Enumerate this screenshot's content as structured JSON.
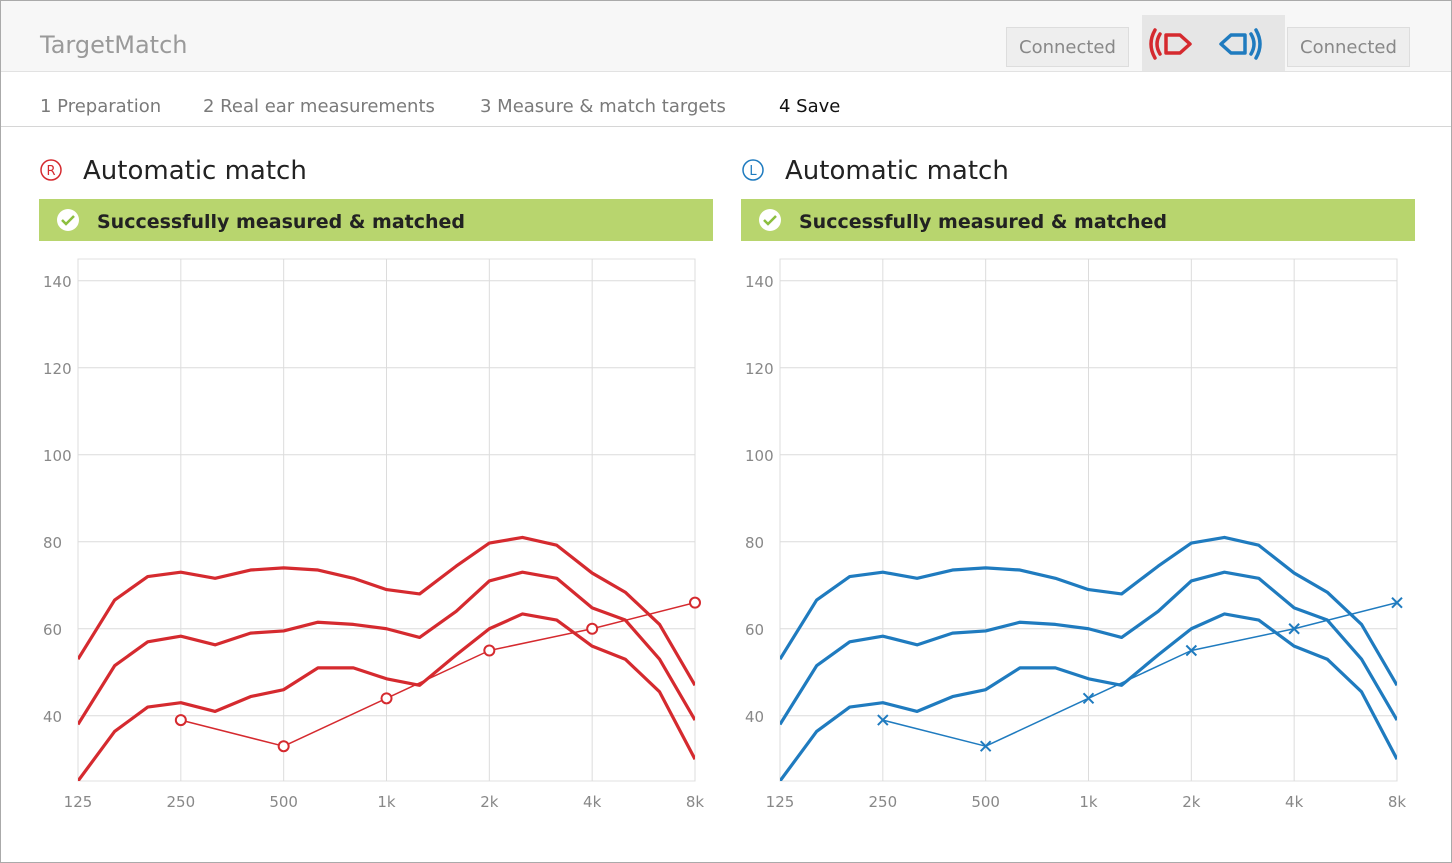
{
  "header": {
    "title": "TargetMatch",
    "status_left": "Connected",
    "status_right": "Connected"
  },
  "steps": [
    "1 Preparation",
    "2 Real ear measurements",
    "3 Measure & match targets",
    "4 Save"
  ],
  "current_step": 3,
  "chart_data": [
    {
      "type": "line",
      "side": "R",
      "title": "Automatic match",
      "status": "Successfully measured & matched",
      "color": "#d52a2f",
      "marker": "circle",
      "x": [
        125,
        160,
        200,
        250,
        315,
        400,
        500,
        630,
        800,
        1000,
        1250,
        1600,
        2000,
        2500,
        3150,
        4000,
        5000,
        6300,
        8000
      ],
      "xlim": [
        125,
        8000
      ],
      "log_x": true,
      "xticks": [
        125,
        250,
        500,
        {
          "value": 1000,
          "label": "1k"
        },
        {
          "value": 2000,
          "label": "2k"
        },
        {
          "value": 4000,
          "label": "4k"
        },
        {
          "value": 8000,
          "label": "8k"
        }
      ],
      "ylim": [
        25,
        145
      ],
      "yticks": [
        40,
        60,
        80,
        100,
        120,
        140
      ],
      "grid": true,
      "series": [
        {
          "values": [
            53,
            66.6,
            72,
            73,
            71.6,
            73.5,
            74,
            73.5,
            71.6,
            69,
            68,
            74.4,
            79.7,
            81,
            79.2,
            72.8,
            68.4,
            61,
            47
          ]
        },
        {
          "values": [
            38,
            51.5,
            57,
            58.3,
            56.3,
            59,
            59.5,
            61.5,
            61,
            60,
            58,
            64,
            71,
            73,
            71.6,
            64.8,
            62,
            53,
            39
          ]
        },
        {
          "values": [
            25,
            36.4,
            42,
            43,
            41,
            44.4,
            46,
            51,
            51,
            48.5,
            47,
            54,
            60,
            63.4,
            62,
            56,
            53,
            45.5,
            30
          ]
        },
        {
          "x": [
            250,
            500,
            1000,
            2000,
            4000,
            8000
          ],
          "values": [
            39,
            33,
            44,
            55,
            60,
            66
          ]
        }
      ]
    },
    {
      "type": "line",
      "side": "L",
      "title": "Automatic match",
      "status": "Successfully measured & matched",
      "color": "#1f7bbf",
      "marker": "x",
      "x": [
        125,
        160,
        200,
        250,
        315,
        400,
        500,
        630,
        800,
        1000,
        1250,
        1600,
        2000,
        2500,
        3150,
        4000,
        5000,
        6300,
        8000
      ],
      "xlim": [
        125,
        8000
      ],
      "log_x": true,
      "xticks": [
        125,
        250,
        500,
        {
          "value": 1000,
          "label": "1k"
        },
        {
          "value": 2000,
          "label": "2k"
        },
        {
          "value": 4000,
          "label": "4k"
        },
        {
          "value": 8000,
          "label": "8k"
        }
      ],
      "ylim": [
        25,
        145
      ],
      "yticks": [
        40,
        60,
        80,
        100,
        120,
        140
      ],
      "grid": true,
      "series": [
        {
          "values": [
            53,
            66.6,
            72,
            73,
            71.6,
            73.5,
            74,
            73.5,
            71.6,
            69,
            68,
            74.4,
            79.7,
            81,
            79.2,
            72.8,
            68.4,
            61,
            47
          ]
        },
        {
          "values": [
            38,
            51.5,
            57,
            58.3,
            56.3,
            59,
            59.5,
            61.5,
            61,
            60,
            58,
            64,
            71,
            73,
            71.6,
            64.8,
            62,
            53,
            39
          ]
        },
        {
          "values": [
            25,
            36.4,
            42,
            43,
            41,
            44.4,
            46,
            51,
            51,
            48.5,
            47,
            54,
            60,
            63.4,
            62,
            56,
            53,
            45.5,
            30
          ]
        },
        {
          "x": [
            250,
            500,
            1000,
            2000,
            4000,
            8000
          ],
          "values": [
            39,
            33,
            44,
            55,
            60,
            66
          ]
        }
      ]
    }
  ]
}
